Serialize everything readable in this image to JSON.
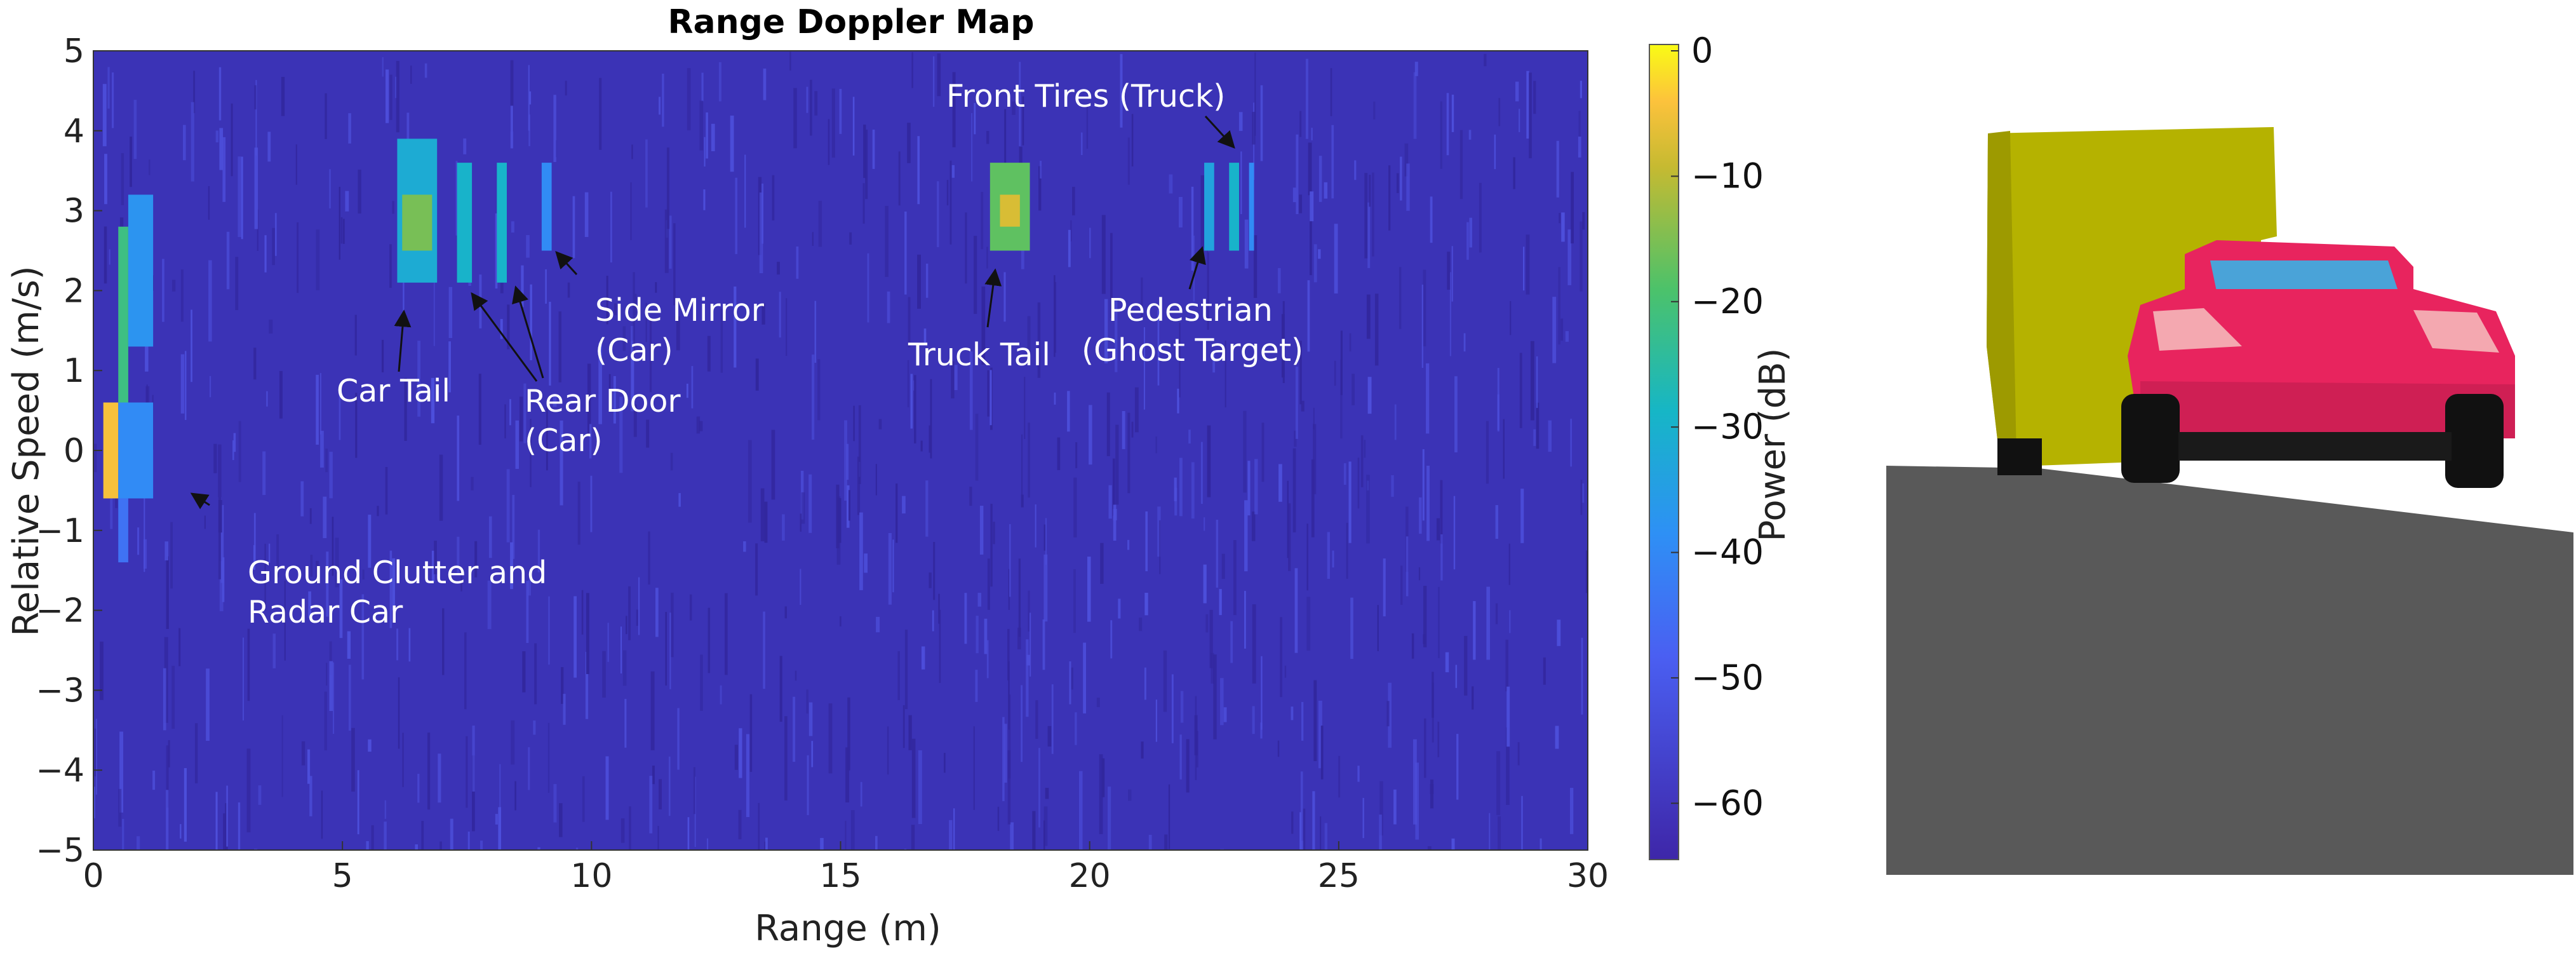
{
  "chart_data": {
    "type": "heatmap",
    "title": "Range Doppler Map",
    "xlabel": "Range (m)",
    "ylabel": "Relative Speed (m/s)",
    "xlim": [
      0,
      30
    ],
    "ylim": [
      -5,
      5
    ],
    "x_ticks": [
      "0",
      "5",
      "10",
      "15",
      "20",
      "25",
      "30"
    ],
    "y_ticks": [
      "5",
      "4",
      "3",
      "2",
      "1",
      "0",
      "−1",
      "−2",
      "−3",
      "−4",
      "−5"
    ],
    "colorbar": {
      "label": "Power (dB)",
      "range": [
        -65,
        0
      ],
      "ticks": [
        "0",
        "−10",
        "−20",
        "−30",
        "−40",
        "−50",
        "−60"
      ],
      "colormap": "parula"
    },
    "background_level_db": -60,
    "grid": false,
    "targets": [
      {
        "range": [
          0.2,
          0.5
        ],
        "speed": [
          -0.6,
          0.6
        ],
        "power_db": -5
      },
      {
        "range": [
          0.5,
          0.7
        ],
        "speed": [
          0.6,
          2.8
        ],
        "power_db": -22
      },
      {
        "range": [
          0.7,
          1.2
        ],
        "speed": [
          1.3,
          3.2
        ],
        "power_db": -38
      },
      {
        "range": [
          0.5,
          1.2
        ],
        "speed": [
          -0.6,
          0.6
        ],
        "power_db": -40
      },
      {
        "range": [
          0.5,
          0.7
        ],
        "speed": [
          -1.4,
          -0.6
        ],
        "power_db": -45
      },
      {
        "range": [
          6.1,
          6.9
        ],
        "speed": [
          2.1,
          3.9
        ],
        "power_db": -32
      },
      {
        "range": [
          6.2,
          6.8
        ],
        "speed": [
          2.5,
          3.2
        ],
        "power_db": -16
      },
      {
        "range": [
          7.3,
          7.6
        ],
        "speed": [
          2.1,
          3.6
        ],
        "power_db": -30
      },
      {
        "range": [
          8.1,
          8.3
        ],
        "speed": [
          2.1,
          3.6
        ],
        "power_db": -30
      },
      {
        "range": [
          9.0,
          9.2
        ],
        "speed": [
          2.5,
          3.6
        ],
        "power_db": -40
      },
      {
        "range": [
          18.0,
          18.8
        ],
        "speed": [
          2.5,
          3.6
        ],
        "power_db": -18
      },
      {
        "range": [
          18.2,
          18.6
        ],
        "speed": [
          2.8,
          3.2
        ],
        "power_db": -8
      },
      {
        "range": [
          22.3,
          22.5
        ],
        "speed": [
          2.5,
          3.6
        ],
        "power_db": -34
      },
      {
        "range": [
          22.8,
          23.0
        ],
        "speed": [
          2.5,
          3.6
        ],
        "power_db": -30
      },
      {
        "range": [
          23.2,
          23.3
        ],
        "speed": [
          2.5,
          3.6
        ],
        "power_db": -40
      }
    ],
    "annotations": [
      {
        "text": [
          "Ground Clutter and",
          "Radar Car"
        ],
        "target": [
          2.1,
          -0.6
        ]
      },
      {
        "text": [
          "Car Tail"
        ],
        "target": [
          6.3,
          2.3
        ]
      },
      {
        "text": [
          "Rear Door",
          "(Car)"
        ],
        "target": [
          7.6,
          2.0
        ]
      },
      {
        "text": [
          "Rear Door",
          "(Car)"
        ],
        "target": [
          8.4,
          2.0
        ]
      },
      {
        "text": [
          "Side Mirror",
          "(Car)"
        ],
        "target": [
          9.3,
          2.5
        ]
      },
      {
        "text": [
          "Truck Tail"
        ],
        "target": [
          18.3,
          2.4
        ]
      },
      {
        "text": [
          "Front Tires (Truck)"
        ],
        "target": [
          22.9,
          3.5
        ]
      },
      {
        "text": [
          "Pedestrian",
          "(Ghost Target)"
        ],
        "target": [
          22.3,
          2.5
        ]
      }
    ]
  },
  "labels": {
    "ann_ground_1": "Ground Clutter and",
    "ann_ground_2": "Radar Car",
    "ann_car_tail": "Car Tail",
    "ann_rear_door_1": "Rear Door",
    "ann_rear_door_2": "(Car)",
    "ann_side_mirror_1": "Side Mirror",
    "ann_side_mirror_2": "(Car)",
    "ann_truck_tail": "Truck Tail",
    "ann_front_tires": "Front Tires (Truck)",
    "ann_pedestrian_1": "Pedestrian",
    "ann_pedestrian_2": "(Ghost Target)"
  },
  "scene_colors": {
    "truck": "#b5b200",
    "car": "#e8245e",
    "car_window": "#4aa3d8",
    "road": "#595959",
    "tires": "#111111"
  }
}
